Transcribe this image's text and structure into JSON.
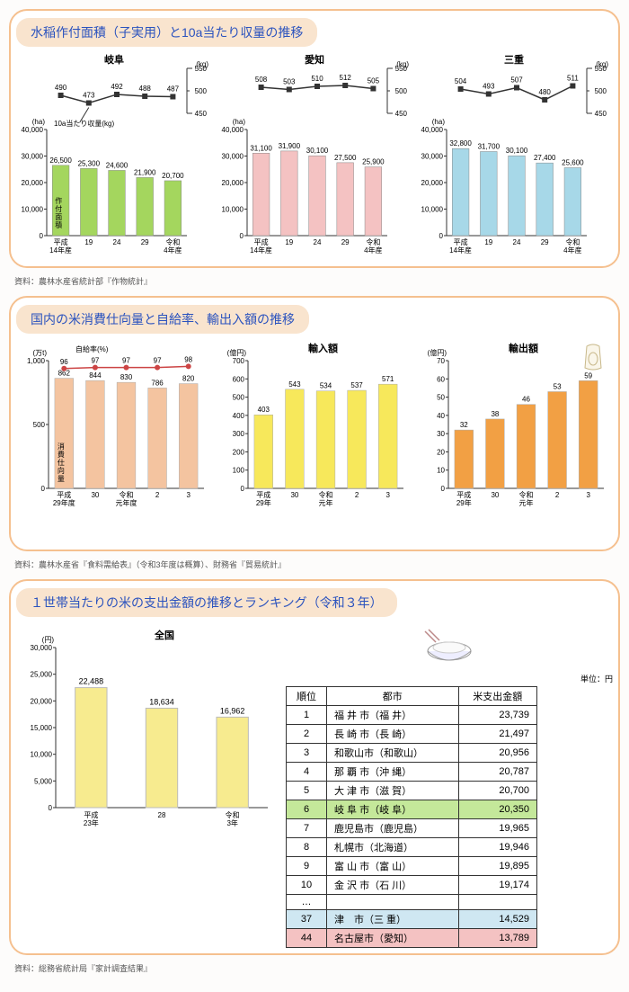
{
  "section1": {
    "title": "水稲作付面積（子実用）と10a当たり収量の推移",
    "footnote": "資料：農林水産省統計部『作物統計』",
    "xcats": [
      "平成\n14年産",
      "19",
      "24",
      "29",
      "令和\n4年産"
    ],
    "bar_ylim": [
      0,
      40000
    ],
    "bar_ytick": 10000,
    "line_ylim": [
      450,
      550
    ],
    "line_unit_left": "(ha)",
    "line_unit_right": "(kg)",
    "note_yield": "10a当たり収量(kg)",
    "note_area": "作付面積",
    "panels": [
      {
        "name": "岐阜",
        "bars": [
          26500,
          25300,
          24600,
          21900,
          20700
        ],
        "line": [
          490,
          473,
          492,
          488,
          487
        ],
        "bar_color": "#a4d65e"
      },
      {
        "name": "愛知",
        "bars": [
          31100,
          31900,
          30100,
          27500,
          25900
        ],
        "line": [
          508,
          503,
          510,
          512,
          505
        ],
        "bar_color": "#f4c2c2"
      },
      {
        "name": "三重",
        "bars": [
          32800,
          31700,
          30100,
          27400,
          25600
        ],
        "line": [
          504,
          493,
          507,
          480,
          511
        ],
        "bar_color": "#a7d8e8"
      }
    ]
  },
  "section2": {
    "title": "国内の米消費仕向量と自給率、輸出入額の推移",
    "footnote": "資料：農林水産省『食料需給表』（令和3年度は概算）、財務省『貿易統計』",
    "xcats": [
      "平成\n29年度",
      "30",
      "令和\n元年度",
      "2",
      "3"
    ],
    "xcats2": [
      "平成\n29年",
      "30",
      "令和\n元年",
      "2",
      "3"
    ],
    "panelA": {
      "label_suff": "自給率(%)",
      "unit": "(万t)",
      "bar_note": "消費仕向量",
      "bars": [
        862,
        844,
        830,
        786,
        820
      ],
      "line": [
        96,
        97,
        97,
        97,
        98
      ],
      "bar_color": "#f4c4a0",
      "line_color": "#c44",
      "ylim": [
        0,
        1000
      ],
      "ytick": 500
    },
    "panelB": {
      "title": "輸入額",
      "unit": "(億円)",
      "bars": [
        403,
        543,
        534,
        537,
        571
      ],
      "bar_color": "#f7e85b",
      "ylim": [
        0,
        700
      ],
      "ytick": 100
    },
    "panelC": {
      "title": "輸出額",
      "unit": "(億円)",
      "bars": [
        32,
        38,
        46,
        53,
        59
      ],
      "bar_color": "#f2a044",
      "ylim": [
        0,
        70
      ],
      "ytick": 10
    }
  },
  "section3": {
    "title": "１世帯当たりの米の支出金額の推移とランキング（令和３年）",
    "footnote": "資料：総務省統計局『家計調査結果』",
    "chart": {
      "title": "全国",
      "unit": "(円)",
      "xcats": [
        "平成\n23年",
        "28",
        "令和\n3年"
      ],
      "bars": [
        22488,
        18634,
        16962
      ],
      "bar_color": "#f7eb8f",
      "ylim": [
        0,
        30000
      ],
      "ytick": 5000
    },
    "table": {
      "unit": "単位：円",
      "headers": [
        "順位",
        "都市",
        "米支出金額"
      ],
      "rows": [
        {
          "r": "1",
          "c": "福 井 市（福 井）",
          "v": "23,739"
        },
        {
          "r": "2",
          "c": "長 崎 市（長 崎）",
          "v": "21,497"
        },
        {
          "r": "3",
          "c": "和歌山市（和歌山）",
          "v": "20,956"
        },
        {
          "r": "4",
          "c": "那 覇 市（沖 縄）",
          "v": "20,787"
        },
        {
          "r": "5",
          "c": "大 津 市（滋 賀）",
          "v": "20,700"
        },
        {
          "r": "6",
          "c": "岐 阜 市（岐 阜）",
          "v": "20,350",
          "hl": "#c4e89a"
        },
        {
          "r": "7",
          "c": "鹿児島市（鹿児島）",
          "v": "19,965"
        },
        {
          "r": "8",
          "c": "札幌市（北海道）",
          "v": "19,946"
        },
        {
          "r": "9",
          "c": "富 山 市（富 山）",
          "v": "19,895"
        },
        {
          "r": "10",
          "c": "金 沢 市（石 川）",
          "v": "19,174"
        },
        {
          "r": "…",
          "c": "",
          "v": ""
        },
        {
          "r": "37",
          "c": "津　市（三 重）",
          "v": "14,529",
          "hl": "#cfe7f2"
        },
        {
          "r": "44",
          "c": "名古屋市（愛知）",
          "v": "13,789",
          "hl": "#f4c2c2"
        }
      ]
    }
  }
}
